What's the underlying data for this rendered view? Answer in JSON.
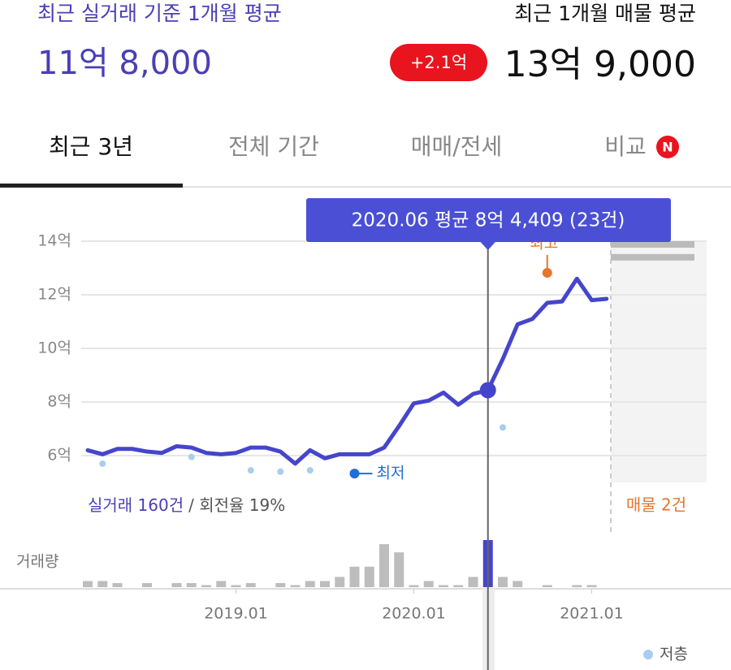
{
  "header": {
    "title_left": "최근 실거래 기준 1개월 평균",
    "value_left": "11억 8,000",
    "title_right": "최근 1개월 매물 평균",
    "badge": "+2.1억",
    "value_right": "13억 9,000"
  },
  "tabs": [
    "최근 3년",
    "전체 기간",
    "매매/전세",
    "비교"
  ],
  "tab_badge": "N",
  "chart_data": {
    "type": "line",
    "color": "#4545cc",
    "x": [
      "2018.03",
      "2018.04",
      "2018.05",
      "2018.06",
      "2018.07",
      "2018.08",
      "2018.09",
      "2018.10",
      "2018.11",
      "2018.12",
      "2019.01",
      "2019.02",
      "2019.03",
      "2019.04",
      "2019.05",
      "2019.06",
      "2019.07",
      "2019.08",
      "2019.09",
      "2019.10",
      "2019.11",
      "2019.12",
      "2020.01",
      "2020.02",
      "2020.03",
      "2020.04",
      "2020.05",
      "2020.06",
      "2020.07",
      "2020.08",
      "2020.09",
      "2020.10",
      "2020.11",
      "2020.12",
      "2021.01",
      "2021.02"
    ],
    "values": [
      6.2,
      6.05,
      6.25,
      6.25,
      6.15,
      6.1,
      6.35,
      6.3,
      6.1,
      6.05,
      6.1,
      6.3,
      6.3,
      6.15,
      5.7,
      6.2,
      5.9,
      6.05,
      6.05,
      6.05,
      6.3,
      7.1,
      7.95,
      8.05,
      8.35,
      7.9,
      8.3,
      8.4409,
      9.6,
      10.9,
      11.1,
      11.7,
      11.75,
      12.6,
      11.8,
      11.85
    ],
    "ylim": [
      5,
      14
    ],
    "yticks": [
      {
        "value": 6,
        "label": "6억"
      },
      {
        "value": 8,
        "label": "8억"
      },
      {
        "value": 10,
        "label": "10억"
      },
      {
        "value": 12,
        "label": "12억"
      },
      {
        "value": 14,
        "label": "14억"
      }
    ],
    "xticks": [
      "2019.01",
      "2020.01",
      "2021.01"
    ],
    "grid": true,
    "scatter_series": [
      {
        "name": "저층",
        "color": "#a9cdef",
        "x": [
          "2018.04",
          "2018.10",
          "2019.02",
          "2019.04",
          "2019.06",
          "2020.07"
        ],
        "values": [
          5.7,
          5.95,
          5.45,
          5.4,
          5.45,
          7.05
        ]
      }
    ],
    "volume": {
      "label": "거래량",
      "color": "#bdbdbd",
      "values": [
        3,
        3,
        2,
        0,
        2,
        0,
        2,
        2,
        1,
        3,
        1,
        2,
        0,
        2,
        1,
        3,
        3,
        5,
        10,
        10,
        21,
        17,
        1,
        3,
        1,
        1,
        5,
        23,
        5,
        3,
        0,
        1,
        0,
        1,
        1,
        0
      ]
    },
    "tooltip": {
      "x": "2020.06",
      "text": "2020.06 평균 8억 4,409 (23건)"
    },
    "annotations": [
      {
        "text": "최저",
        "x": "2019.09",
        "value": 5.33,
        "color": "#1f6fd6"
      },
      {
        "text": "최고",
        "x": "2020.10",
        "value": 12.82,
        "color": "#e8742a"
      }
    ],
    "summary": {
      "count_text": "실거래 160건",
      "rate_text": "/ 회전율 19%"
    },
    "listing": {
      "text": "매물 2건",
      "values": [
        13.88,
        13.4
      ]
    }
  }
}
